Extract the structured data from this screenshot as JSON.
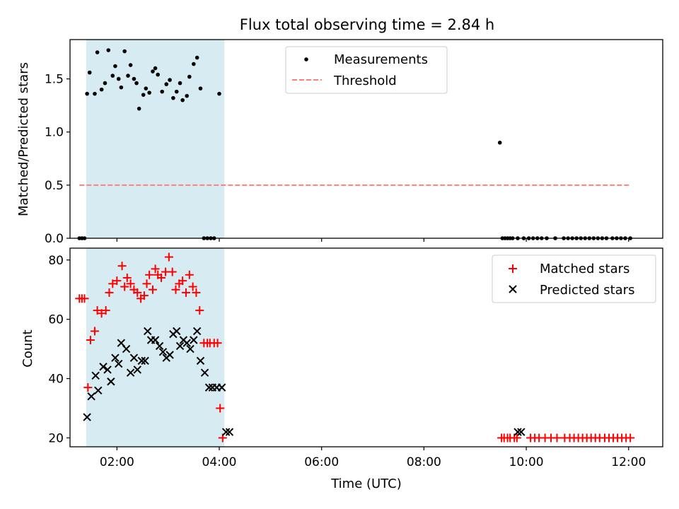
{
  "chart_data": [
    {
      "type": "scatter",
      "title": "Flux total observing time = 2.84 h",
      "xlabel": "",
      "ylabel": "Matched/Predicted stars",
      "xlim": [
        "01:05",
        "12:40"
      ],
      "ylim": [
        0,
        1.87
      ],
      "yticks": [
        "0.0",
        "0.5",
        "1.0",
        "1.5"
      ],
      "shaded_interval": {
        "from": "01:24",
        "to": "04:06",
        "color": "#add8e6"
      },
      "legend_position": "upper center",
      "series": [
        {
          "name": "Measurements",
          "marker": "dot",
          "color": "#000000",
          "x": [
            "01:16",
            "01:19",
            "01:22",
            "01:25",
            "01:28",
            "01:34",
            "01:37",
            "01:42",
            "01:46",
            "01:50",
            "01:55",
            "01:58",
            "02:02",
            "02:05",
            "02:09",
            "02:13",
            "02:16",
            "02:20",
            "02:23",
            "02:26",
            "02:31",
            "02:34",
            "02:38",
            "02:42",
            "02:45",
            "02:48",
            "02:53",
            "02:58",
            "03:02",
            "03:06",
            "03:10",
            "03:14",
            "03:17",
            "03:22",
            "03:25",
            "03:30",
            "03:34",
            "03:38",
            "03:42",
            "03:46",
            "03:50",
            "03:54",
            "04:00",
            "09:29",
            "09:32",
            "09:35",
            "09:38",
            "09:41",
            "09:44",
            "09:50",
            "09:57",
            "10:03",
            "10:08",
            "10:13",
            "10:18",
            "10:24",
            "10:34",
            "10:44",
            "10:49",
            "10:54",
            "10:59",
            "11:04",
            "11:09",
            "11:14",
            "11:19",
            "11:24",
            "11:29",
            "11:34",
            "11:41",
            "11:46",
            "11:51",
            "11:56",
            "12:02"
          ],
          "y": [
            0,
            0,
            0,
            1.36,
            1.56,
            1.36,
            1.75,
            1.4,
            1.46,
            1.77,
            1.53,
            1.62,
            1.5,
            1.42,
            1.76,
            1.53,
            1.63,
            1.5,
            1.46,
            1.22,
            1.35,
            1.41,
            1.37,
            1.57,
            1.6,
            1.54,
            1.38,
            1.45,
            1.49,
            1.32,
            1.38,
            1.46,
            1.3,
            1.34,
            1.52,
            1.64,
            1.7,
            1.41,
            0,
            0,
            0,
            0,
            1.36,
            0.9,
            0,
            0,
            0,
            0,
            0,
            0,
            0,
            0,
            0,
            0,
            0,
            0,
            0,
            0,
            0,
            0,
            0,
            0,
            0,
            0,
            0,
            0,
            0,
            0,
            0,
            0,
            0,
            0,
            0
          ]
        },
        {
          "name": "Threshold",
          "style": "dashed",
          "color": "#ff7f7f",
          "x": [
            "01:16",
            "12:02"
          ],
          "y": [
            0.5,
            0.5
          ]
        }
      ]
    },
    {
      "type": "scatter",
      "title": "",
      "xlabel": "Time (UTC)",
      "ylabel": "Count",
      "xlim": [
        "01:05",
        "12:40"
      ],
      "ylim": [
        17,
        84
      ],
      "yticks": [
        "20",
        "40",
        "60",
        "80"
      ],
      "xticks": [
        "02:00",
        "04:00",
        "06:00",
        "08:00",
        "10:00",
        "12:00"
      ],
      "shaded_interval": {
        "from": "01:24",
        "to": "04:06",
        "color": "#add8e6"
      },
      "legend_position": "upper right",
      "series": [
        {
          "name": "Matched stars",
          "marker": "plus",
          "color": "#ff0000",
          "x": [
            "01:16",
            "01:19",
            "01:22",
            "01:26",
            "01:29",
            "01:34",
            "01:37",
            "01:42",
            "01:47",
            "01:51",
            "01:55",
            "02:00",
            "02:06",
            "02:09",
            "02:12",
            "02:16",
            "02:20",
            "02:24",
            "02:28",
            "02:32",
            "02:35",
            "02:38",
            "02:42",
            "02:45",
            "02:48",
            "02:52",
            "02:57",
            "03:01",
            "03:05",
            "03:09",
            "03:13",
            "03:17",
            "03:21",
            "03:25",
            "03:29",
            "03:33",
            "03:37",
            "03:42",
            "03:46",
            "03:49",
            "03:54",
            "03:58",
            "04:01",
            "04:04",
            "09:31",
            "09:34",
            "09:38",
            "09:41",
            "09:46",
            "09:49",
            "10:05",
            "10:10",
            "10:15",
            "10:22",
            "10:29",
            "10:36",
            "10:45",
            "10:51",
            "10:56",
            "11:01",
            "11:06",
            "11:11",
            "11:16",
            "11:21",
            "11:26",
            "11:32",
            "11:37",
            "11:42",
            "11:47",
            "11:52",
            "11:57",
            "12:02"
          ],
          "y": [
            67,
            67,
            67,
            37,
            53,
            56,
            63,
            62,
            63,
            69,
            72,
            73,
            78,
            71,
            74,
            72,
            70,
            69,
            67,
            68,
            72,
            75,
            70,
            77,
            75,
            74,
            76,
            81,
            76,
            70,
            72,
            73,
            69,
            75,
            71,
            69,
            63,
            52,
            52,
            52,
            52,
            52,
            30,
            20,
            20,
            20,
            20,
            20,
            20,
            20,
            20,
            20,
            20,
            20,
            20,
            20,
            20,
            20,
            20,
            20,
            20,
            20,
            20,
            20,
            20,
            20,
            20,
            20,
            20,
            20,
            20,
            20
          ]
        },
        {
          "name": "Predicted stars",
          "marker": "x",
          "color": "#000000",
          "x": [
            "01:25",
            "01:30",
            "01:35",
            "01:38",
            "01:44",
            "01:49",
            "01:53",
            "01:58",
            "02:02",
            "02:05",
            "02:11",
            "02:16",
            "02:20",
            "02:24",
            "02:29",
            "02:33",
            "02:36",
            "02:40",
            "02:45",
            "02:50",
            "02:54",
            "02:58",
            "03:02",
            "03:06",
            "03:10",
            "03:14",
            "03:18",
            "03:22",
            "03:26",
            "03:30",
            "03:34",
            "03:38",
            "03:43",
            "03:48",
            "03:52",
            "03:57",
            "04:03",
            "04:08",
            "04:12",
            "09:50",
            "09:54"
          ],
          "y": [
            27,
            34,
            41,
            36,
            44,
            43,
            39,
            47,
            45,
            52,
            50,
            42,
            47,
            43,
            46,
            46,
            56,
            53,
            53,
            51,
            49,
            47,
            48,
            55,
            56,
            51,
            53,
            52,
            50,
            53,
            56,
            46,
            42,
            37,
            37,
            37,
            37,
            22,
            22,
            22,
            22
          ]
        }
      ]
    }
  ]
}
